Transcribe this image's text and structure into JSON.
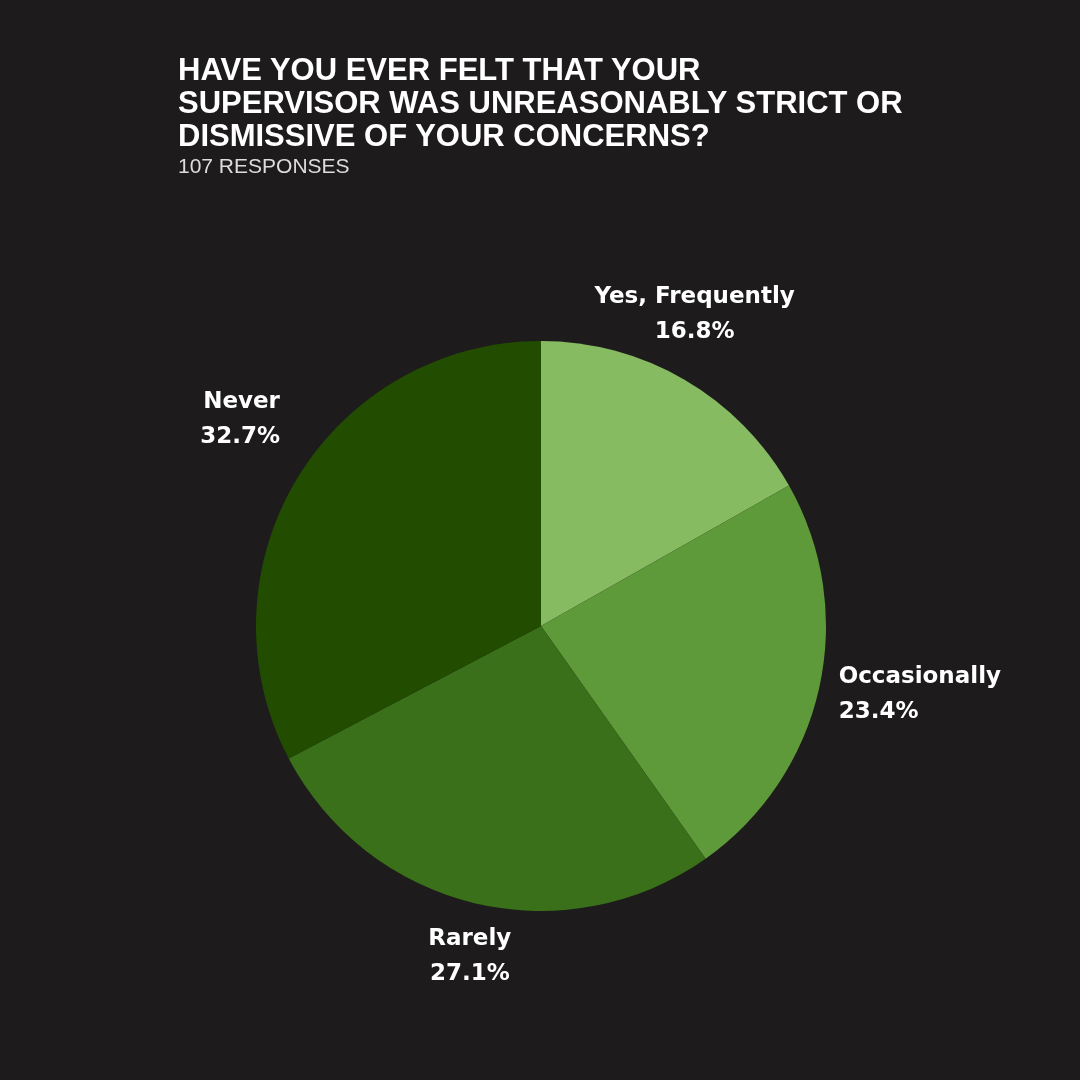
{
  "chart_data": {
    "type": "pie",
    "title": "HAVE YOU EVER FELT THAT YOUR SUPERVISOR WAS UNREASONABLY STRICT OR DISMISSIVE OF YOUR CONCERNS?",
    "subtitle": "107 RESPONSES",
    "categories": [
      "Yes, Frequently",
      "Occasionally",
      "Rarely",
      "Never"
    ],
    "values": [
      16.8,
      23.4,
      27.1,
      32.7
    ],
    "colors": [
      "#86bb62",
      "#5f9a3a",
      "#3a7019",
      "#224d00"
    ],
    "value_labels": [
      "16.8%",
      "23.4%",
      "27.1%",
      "32.7%"
    ]
  }
}
